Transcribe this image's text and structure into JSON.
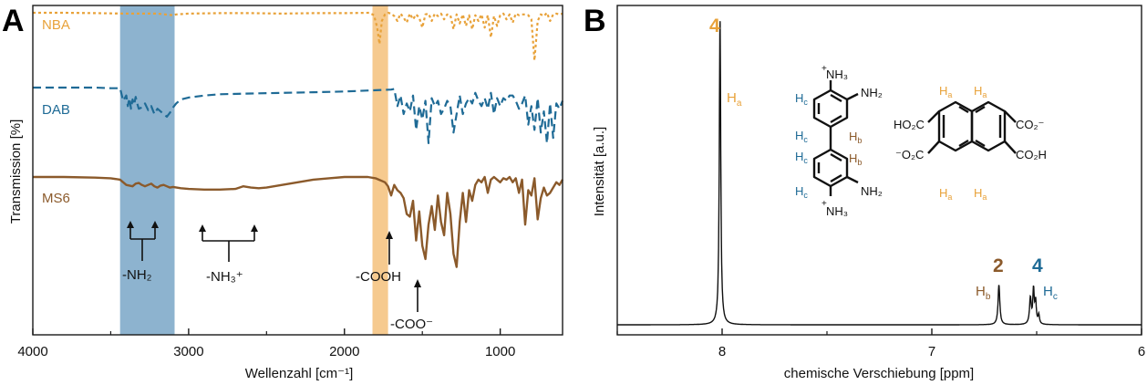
{
  "colors": {
    "nba": "#e8a23a",
    "dab": "#1f6b96",
    "ms6": "#8b5a2b",
    "band_nh": "#8db3cf",
    "band_co": "#f6ca8f",
    "axis": "#1a1a1a"
  },
  "chart_data": [
    {
      "panel_label": "A",
      "type": "line",
      "xlabel": "Wellenzahl [cm⁻¹]",
      "ylabel": "Transmission [%]",
      "xlim": [
        4000,
        600
      ],
      "x_reversed": true,
      "y_ticks_shown": false,
      "xticks": [
        4000,
        3000,
        2000,
        1000
      ],
      "xtick_labels": [
        "4000",
        "3000",
        "2000",
        "1000"
      ],
      "highlight_bands": [
        {
          "from": 3440,
          "to": 3090,
          "color": "band_nh"
        },
        {
          "from": 1820,
          "to": 1720,
          "color": "band_co"
        }
      ],
      "series": [
        {
          "name": "NBA",
          "style": "dotted",
          "color": "nba",
          "x": [
            4000,
            3800,
            3600,
            3400,
            3200,
            3100,
            3080,
            3000,
            2800,
            2600,
            2400,
            2200,
            2000,
            1840,
            1810,
            1790,
            1775,
            1760,
            1740,
            1720,
            1700,
            1680,
            1660,
            1640,
            1620,
            1600,
            1580,
            1560,
            1540,
            1520,
            1500,
            1480,
            1460,
            1440,
            1420,
            1400,
            1380,
            1360,
            1340,
            1320,
            1300,
            1280,
            1260,
            1240,
            1220,
            1200,
            1180,
            1160,
            1140,
            1120,
            1100,
            1080,
            1060,
            1040,
            1020,
            1000,
            980,
            960,
            940,
            920,
            900,
            880,
            860,
            840,
            820,
            800,
            780,
            760,
            740,
            720,
            700,
            680,
            660,
            640,
            620,
            600
          ],
          "y": [
            98,
            98,
            97.5,
            97,
            97,
            95,
            96,
            97,
            97.5,
            97.5,
            97,
            97.5,
            97.5,
            98,
            95,
            80,
            60,
            88,
            96,
            98,
            97,
            94,
            88,
            97,
            92,
            86,
            97,
            90,
            96,
            92,
            80,
            96,
            97,
            88,
            97,
            94,
            97,
            90,
            96,
            95,
            78,
            96,
            85,
            96,
            82,
            95,
            78,
            95,
            88,
            96,
            80,
            95,
            68,
            94,
            82,
            95,
            97,
            90,
            96,
            86,
            97,
            95,
            96,
            96,
            95,
            90,
            40,
            88,
            96,
            94,
            98,
            88,
            96,
            97,
            96,
            97
          ]
        },
        {
          "name": "DAB",
          "style": "dashed",
          "color": "dab",
          "x": [
            4000,
            3800,
            3600,
            3500,
            3440,
            3420,
            3400,
            3390,
            3380,
            3370,
            3360,
            3350,
            3340,
            3330,
            3320,
            3300,
            3280,
            3260,
            3240,
            3220,
            3200,
            3180,
            3160,
            3140,
            3120,
            3100,
            3080,
            3050,
            3000,
            2900,
            2800,
            2600,
            2400,
            2200,
            2000,
            1900,
            1800,
            1700,
            1680,
            1660,
            1640,
            1620,
            1600,
            1580,
            1560,
            1540,
            1520,
            1500,
            1480,
            1460,
            1440,
            1420,
            1400,
            1380,
            1360,
            1340,
            1320,
            1300,
            1280,
            1260,
            1240,
            1220,
            1200,
            1180,
            1160,
            1140,
            1120,
            1100,
            1080,
            1060,
            1040,
            1020,
            1000,
            980,
            960,
            940,
            920,
            900,
            880,
            860,
            840,
            820,
            800,
            780,
            760,
            740,
            720,
            700,
            680,
            660,
            640,
            620,
            600
          ],
          "y": [
            72,
            72,
            72,
            71.5,
            71.5,
            62,
            66,
            58,
            64,
            56,
            63,
            59,
            65,
            60,
            56,
            57,
            60,
            55,
            58,
            52,
            56,
            54,
            52,
            50,
            53,
            57,
            60,
            63,
            64.5,
            66,
            67,
            67.5,
            68,
            68.5,
            69,
            69.5,
            70,
            70.5,
            71,
            58,
            66,
            52,
            60,
            54,
            66,
            40,
            58,
            48,
            62,
            30,
            64,
            58,
            62,
            52,
            56,
            62,
            58,
            38,
            52,
            66,
            52,
            60,
            64,
            60,
            68,
            62,
            58,
            64,
            56,
            68,
            52,
            64,
            58,
            64,
            62,
            66,
            66,
            62,
            56,
            60,
            66,
            44,
            58,
            40,
            64,
            38,
            54,
            30,
            60,
            34,
            60,
            56,
            62
          ]
        },
        {
          "name": "MS6",
          "style": "solid",
          "color": "ms6",
          "x": [
            4000,
            3800,
            3600,
            3500,
            3440,
            3400,
            3360,
            3340,
            3320,
            3300,
            3280,
            3260,
            3240,
            3220,
            3200,
            3180,
            3160,
            3140,
            3120,
            3100,
            3050,
            3000,
            2900,
            2800,
            2700,
            2650,
            2600,
            2550,
            2500,
            2400,
            2300,
            2200,
            2100,
            2000,
            1900,
            1850,
            1800,
            1780,
            1760,
            1740,
            1720,
            1700,
            1680,
            1660,
            1640,
            1620,
            1600,
            1580,
            1560,
            1540,
            1520,
            1500,
            1480,
            1460,
            1440,
            1420,
            1400,
            1380,
            1360,
            1340,
            1320,
            1300,
            1280,
            1260,
            1240,
            1220,
            1200,
            1180,
            1160,
            1140,
            1120,
            1100,
            1080,
            1060,
            1040,
            1020,
            1000,
            980,
            960,
            940,
            920,
            900,
            880,
            860,
            840,
            820,
            800,
            780,
            760,
            740,
            720,
            700,
            680,
            660,
            640,
            620,
            600
          ],
          "y": [
            42,
            42,
            41.5,
            41,
            40,
            36,
            35,
            37,
            37.5,
            36,
            35,
            36,
            37,
            35,
            34,
            35.5,
            36,
            35,
            34,
            34.5,
            33.5,
            33,
            32.5,
            32.5,
            33,
            35,
            34,
            33.5,
            34,
            36,
            38,
            40,
            41,
            42,
            42,
            42,
            41,
            40,
            39,
            38,
            35,
            28,
            36,
            32,
            30,
            26,
            14,
            12,
            24,
            -6,
            16,
            -10,
            -20,
            6,
            20,
            2,
            28,
            8,
            -2,
            30,
            14,
            -16,
            -26,
            8,
            30,
            8,
            32,
            24,
            36,
            40,
            38,
            42,
            30,
            40,
            42,
            40,
            38,
            41,
            40,
            42,
            38,
            41,
            30,
            40,
            6,
            32,
            28,
            41,
            10,
            26,
            34,
            28,
            30,
            34,
            38,
            36,
            40
          ]
        }
      ],
      "annotations": [
        "-NH₂",
        "-NH₃⁺",
        "-COOH",
        "-COO⁻"
      ]
    },
    {
      "panel_label": "B",
      "type": "line",
      "xlabel": "chemische Verschiebung [ppm]",
      "ylabel": "Intensität [a.u.]",
      "xlim": [
        8.5,
        6.0
      ],
      "x_reversed": true,
      "xticks": [
        8,
        7,
        6
      ],
      "xtick_labels": [
        "8",
        "7",
        "6"
      ],
      "series": [
        {
          "name": "",
          "color": "axis",
          "peaks": [
            {
              "ppm": 8.01,
              "height": 1.0,
              "width": 0.004
            },
            {
              "ppm": 6.68,
              "height": 0.13,
              "width": 0.005
            },
            {
              "ppm": 6.53,
              "height": 0.085,
              "width": 0.005
            },
            {
              "ppm": 6.515,
              "height": 0.11,
              "width": 0.004
            },
            {
              "ppm": 6.505,
              "height": 0.07,
              "width": 0.004
            },
            {
              "ppm": 6.49,
              "height": 0.03,
              "width": 0.004
            }
          ]
        }
      ],
      "peak_labels": [
        {
          "integral": "4",
          "proton": "H",
          "sub": "a",
          "color": "nba"
        },
        {
          "integral": "2",
          "proton": "H",
          "sub": "b",
          "color": "ms6"
        },
        {
          "integral": "4",
          "proton": "H",
          "sub": "c",
          "color": "dab"
        }
      ]
    }
  ],
  "panel_b_structures": {
    "dab": {
      "nh3_top": "NH₃",
      "nh3_bottom": "NH₃",
      "plus": "+",
      "nh2_top": "NH₂",
      "nh2_bottom": "NH₂",
      "h_label": "H",
      "sub_b": "b",
      "sub_c": "c"
    },
    "nba": {
      "left_top": "HO₂C",
      "right_top": "CO₂⁻",
      "left_bottom": "⁻O₂C",
      "right_bottom": "CO₂H",
      "h_label": "H",
      "sub_a": "a"
    }
  }
}
